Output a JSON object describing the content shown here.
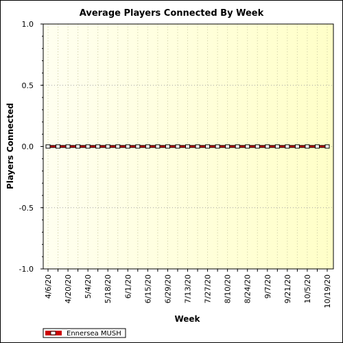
{
  "chart_data": {
    "type": "line",
    "title": "Average Players Connected By Week",
    "xlabel": "Week",
    "ylabel": "Players Connected",
    "ylim": [
      -1.0,
      1.0
    ],
    "y_ticks": [
      "1.0",
      "0.5",
      "0.0",
      "-0.5",
      "-1.0"
    ],
    "x_tick_labels": [
      "4/6/20",
      "4/20/20",
      "5/4/20",
      "5/18/20",
      "6/1/20",
      "6/15/20",
      "6/29/20",
      "7/13/20",
      "7/27/20",
      "8/10/20",
      "8/24/20",
      "9/7/20",
      "9/21/20",
      "10/5/20",
      "10/19/20"
    ],
    "x": [
      "4/6/20",
      "4/13/20",
      "4/20/20",
      "4/27/20",
      "5/4/20",
      "5/11/20",
      "5/18/20",
      "5/25/20",
      "6/1/20",
      "6/8/20",
      "6/15/20",
      "6/22/20",
      "6/29/20",
      "7/6/20",
      "7/13/20",
      "7/20/20",
      "7/27/20",
      "8/3/20",
      "8/10/20",
      "8/17/20",
      "8/24/20",
      "8/31/20",
      "9/7/20",
      "9/14/20",
      "9/21/20",
      "9/28/20",
      "10/5/20",
      "10/12/20",
      "10/19/20"
    ],
    "series": [
      {
        "name": "Ennersea MUSH",
        "color": "#cc0000",
        "values": [
          0,
          0,
          0,
          0,
          0,
          0,
          0,
          0,
          0,
          0,
          0,
          0,
          0,
          0,
          0,
          0,
          0,
          0,
          0,
          0,
          0,
          0,
          0,
          0,
          0,
          0,
          0,
          0,
          0
        ]
      }
    ],
    "grid": true,
    "legend_position": "bottom-left",
    "plot_background": [
      "#fffff0",
      "#ffffc8"
    ]
  }
}
